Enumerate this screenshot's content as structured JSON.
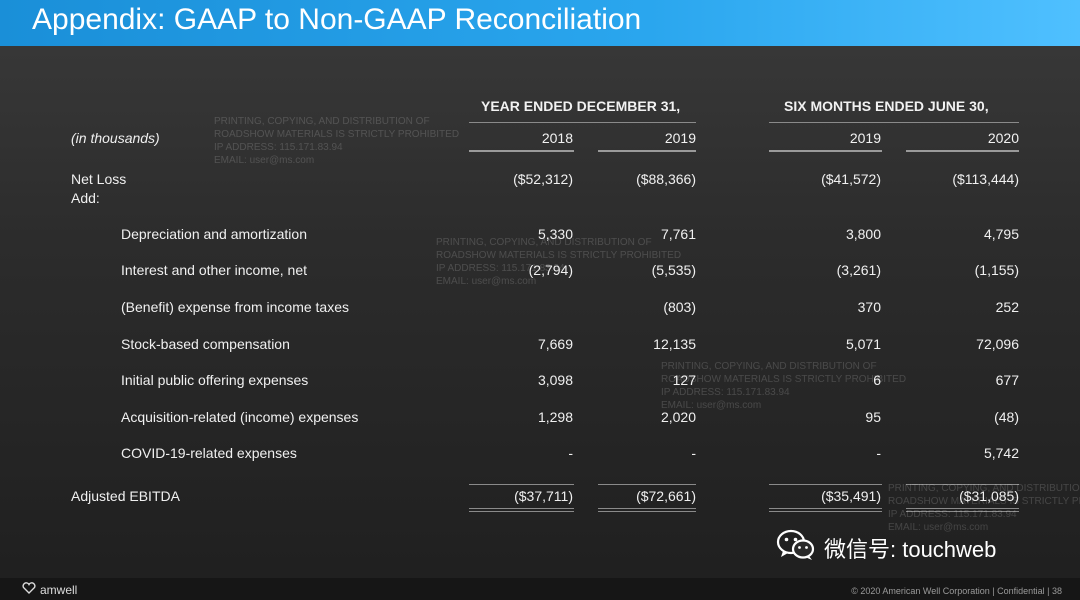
{
  "title": "Appendix: GAAP to Non-GAAP Reconciliation",
  "headers": {
    "units": "(in thousands)",
    "year_ended": "YEAR ENDED DECEMBER 31,",
    "six_months": "SIX MONTHS ENDED JUNE 30,",
    "years": [
      "2018",
      "2019",
      "2019",
      "2020"
    ]
  },
  "rows": [
    {
      "label": "Net Loss",
      "values": [
        "($52,312)",
        "($88,366)",
        "($41,572)",
        "($113,444)"
      ]
    },
    {
      "label": "Add:",
      "values": [
        "",
        "",
        "",
        ""
      ]
    },
    {
      "label": "Depreciation and amortization",
      "values": [
        "5,330",
        "7,761",
        "3,800",
        "4,795"
      ]
    },
    {
      "label": "Interest and other income, net",
      "values": [
        "(2,794)",
        "(5,535)",
        "(3,261)",
        "(1,155)"
      ]
    },
    {
      "label": "(Benefit) expense from income taxes",
      "values": [
        "",
        "(803)",
        "370",
        "252"
      ]
    },
    {
      "label": "Stock-based compensation",
      "values": [
        "7,669",
        "12,135",
        "5,071",
        "72,096"
      ]
    },
    {
      "label": "Initial public offering expenses",
      "values": [
        "3,098",
        "127",
        "6",
        "677"
      ]
    },
    {
      "label": "Acquisition-related (income) expenses",
      "values": [
        "1,298",
        "2,020",
        "95",
        "(48)"
      ]
    },
    {
      "label": "COVID-19-related expenses",
      "values": [
        "-",
        "-",
        "-",
        "5,742"
      ]
    },
    {
      "label": "Adjusted EBITDA",
      "values": [
        "($37,711)",
        "($72,661)",
        "($35,491)",
        "($31,085)"
      ]
    }
  ],
  "watermark": {
    "line1": "PRINTING, COPYING, AND DISTRIBUTION OF",
    "line2": "ROADSHOW MATERIALS IS STRICTLY PROHIBITED",
    "line3": "IP ADDRESS: 115.171.83.94",
    "line4": "EMAIL: user@ms.com"
  },
  "footer": {
    "logo_text": "amwell",
    "copyright": "© 2020 American Well Corporation",
    "confidential": "Confidential",
    "page_number": "38"
  },
  "social": {
    "text": "微信号: touchweb",
    "icon": "wechat-icon"
  },
  "colors": {
    "title_bar": "#2aa6ee",
    "background": "#2c2c2c"
  }
}
